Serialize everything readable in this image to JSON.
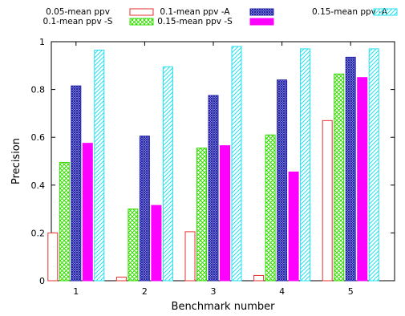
{
  "chart_data": {
    "type": "bar",
    "xlabel": "Benchmark number",
    "ylabel": "Precision",
    "categories": [
      "1",
      "2",
      "3",
      "4",
      "5"
    ],
    "ylim": [
      0,
      1
    ],
    "yticks": [
      "0",
      "0.2",
      "0.4",
      "0.6",
      "0.8",
      "1"
    ],
    "grid": false,
    "legend_position": "top",
    "series": [
      {
        "name": "0.05-mean ppv",
        "values": [
          0.2,
          0.015,
          0.205,
          0.022,
          0.67
        ],
        "color": "#e8312f",
        "pattern": "none"
      },
      {
        "name": "0.1-mean ppv -S",
        "values": [
          0.495,
          0.3,
          0.555,
          0.61,
          0.865
        ],
        "color": "#33dd00",
        "pattern": "crosshatch"
      },
      {
        "name": "0.1-mean ppv -A",
        "values": [
          0.815,
          0.605,
          0.775,
          0.84,
          0.935
        ],
        "color": "#2222aa",
        "pattern": "dense-grid"
      },
      {
        "name": "0.15-mean ppv -S",
        "values": [
          0.575,
          0.315,
          0.565,
          0.455,
          0.85
        ],
        "color": "#ff00ff",
        "pattern": "solid"
      },
      {
        "name": "0.15-mean ppv -A",
        "values": [
          0.965,
          0.895,
          0.98,
          0.97,
          0.97
        ],
        "color": "#22e0f0",
        "pattern": "diagonal"
      }
    ]
  }
}
